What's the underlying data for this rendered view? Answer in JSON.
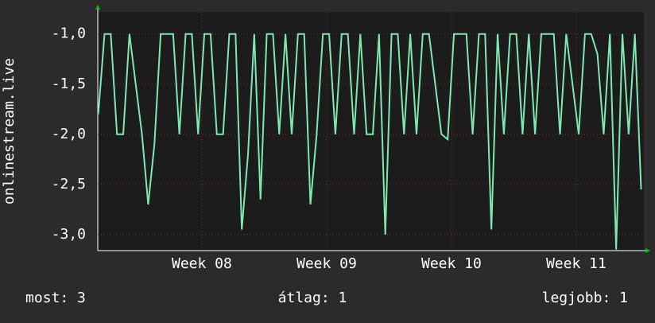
{
  "chart_data": {
    "type": "line",
    "y_label": "onlinestream.live",
    "x": [
      7.17,
      7.22,
      7.27,
      7.32,
      7.37,
      7.42,
      7.47,
      7.52,
      7.57,
      7.62,
      7.67,
      7.72,
      7.77,
      7.82,
      7.87,
      7.92,
      7.97,
      8.02,
      8.07,
      8.12,
      8.17,
      8.22,
      8.27,
      8.32,
      8.37,
      8.42,
      8.47,
      8.52,
      8.57,
      8.62,
      8.67,
      8.72,
      8.77,
      8.82,
      8.87,
      8.92,
      8.97,
      9.02,
      9.07,
      9.12,
      9.17,
      9.22,
      9.27,
      9.32,
      9.37,
      9.42,
      9.47,
      9.52,
      9.57,
      9.62,
      9.67,
      9.72,
      9.77,
      9.82,
      9.87,
      9.92,
      9.97,
      10.02,
      10.07,
      10.12,
      10.17,
      10.22,
      10.27,
      10.32,
      10.37,
      10.42,
      10.47,
      10.52,
      10.57,
      10.62,
      10.67,
      10.72,
      10.77,
      10.82,
      10.87,
      10.92,
      10.97,
      11.02,
      11.07,
      11.12,
      11.17,
      11.22,
      11.27,
      11.32,
      11.37,
      11.42,
      11.47,
      11.52
    ],
    "series": [
      {
        "color": "#7fe8b0",
        "values": [
          -1.8,
          -1,
          -1,
          -2,
          -2,
          -1,
          -1.5,
          -2,
          -2.7,
          -2.1,
          -1,
          -1,
          -1,
          -2,
          -1,
          -1,
          -2,
          -1,
          -1,
          -2,
          -2,
          -1,
          -1,
          -2.95,
          -2.2,
          -1,
          -2.65,
          -1,
          -1,
          -2,
          -1,
          -2,
          -1,
          -1,
          -2.7,
          -2,
          -1,
          -1,
          -2,
          -1,
          -1,
          -2,
          -1,
          -2,
          -2,
          -1,
          -3,
          -1,
          -1,
          -2,
          -1,
          -2,
          -1,
          -1,
          -1.5,
          -2,
          -2.05,
          -1,
          -1,
          -1,
          -2,
          -1,
          -1,
          -2.95,
          -1,
          -2,
          -1,
          -1,
          -2,
          -1,
          -2,
          -1,
          -1,
          -1,
          -2,
          -1,
          -1.5,
          -2,
          -1,
          -1,
          -1.2,
          -2,
          -1,
          -3.15,
          -1,
          -2,
          -1,
          -2.55
        ]
      }
    ],
    "xlim": [
      7.166,
      11.542
    ],
    "xticks": [
      {
        "value": 8,
        "label": "Week 08"
      },
      {
        "value": 9,
        "label": "Week 09"
      },
      {
        "value": 10,
        "label": "Week 10"
      },
      {
        "value": 11,
        "label": "Week 11"
      }
    ],
    "ylim": [
      -3.16,
      -0.78
    ],
    "yticks": [
      {
        "value": -1,
        "label": "-1,0"
      },
      {
        "value": -1.5,
        "label": "-1,5"
      },
      {
        "value": -2,
        "label": "-2,0"
      },
      {
        "value": -2.5,
        "label": "-2,5"
      },
      {
        "value": -3,
        "label": "-3,0"
      }
    ],
    "grid": true,
    "footer": [
      "most: 3",
      "átlag: 1",
      "legjobb: 1"
    ]
  }
}
